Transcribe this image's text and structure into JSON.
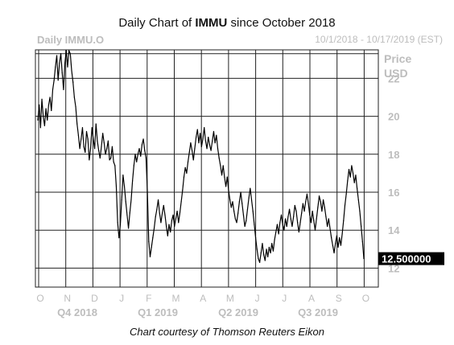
{
  "title": {
    "prefix": "Daily Chart of ",
    "ticker": "IMMU",
    "suffix": " since October 2018"
  },
  "series_label": "Daily IMMU.O",
  "date_range": "10/1/2018 - 10/17/2019 (EST)",
  "price_label_line1": "Price",
  "price_label_line2": "USD",
  "caption": "Chart courtesy of Thomson Reuters Eikon",
  "colors": {
    "line": "#000000",
    "grid": "#222222",
    "muted": "#bdbdbd",
    "last_price_bg": "#000000",
    "last_price_text": "#ffffff"
  },
  "chart_data": {
    "type": "line",
    "title": "Daily Chart of IMMU since October 2018",
    "ylabel": "Price USD",
    "ylim": [
      11,
      23.5
    ],
    "grid": true,
    "y_ticks": [
      12,
      14,
      16,
      18,
      20,
      22
    ],
    "months": [
      "O",
      "N",
      "D",
      "J",
      "F",
      "M",
      "A",
      "M",
      "J",
      "J",
      "A",
      "S",
      "O"
    ],
    "quarters": [
      "Q4 2018",
      "Q1 2019",
      "Q2 2019",
      "Q3 2019"
    ],
    "last_price": "12.500000",
    "series": [
      {
        "values": [
          19.8,
          20.6,
          19.4,
          20.9,
          20.0,
          19.5,
          20.4,
          19.8,
          20.6,
          21.0,
          20.3,
          21.4,
          21.9,
          22.6,
          23.2,
          21.9,
          22.8,
          23.3,
          22.3,
          21.4,
          22.8,
          23.6,
          22.6,
          24.0,
          23.3,
          22.4,
          21.8,
          21.0,
          20.5,
          19.6,
          19.0,
          18.3,
          18.8,
          19.4,
          18.4,
          18.1,
          19.2,
          18.8,
          17.7,
          18.3,
          19.4,
          18.8,
          18.3,
          19.6,
          18.7,
          18.2,
          17.8,
          18.4,
          19.1,
          18.6,
          18.0,
          18.3,
          18.7,
          17.7,
          17.8,
          18.4,
          17.6,
          17.4,
          16.3,
          14.4,
          13.6,
          14.3,
          15.6,
          16.9,
          16.3,
          15.5,
          14.8,
          14.1,
          14.9,
          15.6,
          16.6,
          17.4,
          18.0,
          17.6,
          18.0,
          18.3,
          17.9,
          18.5,
          18.8,
          18.2,
          17.8,
          16.0,
          13.4,
          12.6,
          13.1,
          13.6,
          14.1,
          14.7,
          15.1,
          15.6,
          14.9,
          14.4,
          14.9,
          15.3,
          14.8,
          14.2,
          13.7,
          14.3,
          13.9,
          14.5,
          14.8,
          14.2,
          14.6,
          15.0,
          14.4,
          14.9,
          15.5,
          16.1,
          16.8,
          17.3,
          17.0,
          17.6,
          18.1,
          18.6,
          18.2,
          17.7,
          18.3,
          18.9,
          19.3,
          18.6,
          19.1,
          18.4,
          18.8,
          19.4,
          18.7,
          18.3,
          18.9,
          18.5,
          18.2,
          18.7,
          19.2,
          18.6,
          19.0,
          18.3,
          17.8,
          17.4,
          16.9,
          17.4,
          16.8,
          16.3,
          16.8,
          16.1,
          15.6,
          15.2,
          15.5,
          15.0,
          14.6,
          14.4,
          14.9,
          15.5,
          16.0,
          15.4,
          14.8,
          14.2,
          14.5,
          15.1,
          15.7,
          16.2,
          15.6,
          15.0,
          14.3,
          13.6,
          13.0,
          12.5,
          12.3,
          12.8,
          13.3,
          12.7,
          12.4,
          13.0,
          12.6,
          13.1,
          12.8,
          13.3,
          12.9,
          13.5,
          13.9,
          14.3,
          13.8,
          14.4,
          14.8,
          14.3,
          14.0,
          14.6,
          14.2,
          14.7,
          15.1,
          14.6,
          14.2,
          14.7,
          15.3,
          15.0,
          14.4,
          13.9,
          14.4,
          14.9,
          15.4,
          15.0,
          15.5,
          15.9,
          15.4,
          14.8,
          14.4,
          15.0,
          14.5,
          14.0,
          14.6,
          15.2,
          15.8,
          15.5,
          15.0,
          15.6,
          15.2,
          14.7,
          14.2,
          14.6,
          14.1,
          13.6,
          13.2,
          12.8,
          13.3,
          13.7,
          13.1,
          13.6,
          13.2,
          13.8,
          14.5,
          15.3,
          15.9,
          16.6,
          17.2,
          16.8,
          17.4,
          17.0,
          16.5,
          16.9,
          16.2,
          15.6,
          15.0,
          14.2,
          13.4,
          12.5
        ]
      }
    ]
  }
}
